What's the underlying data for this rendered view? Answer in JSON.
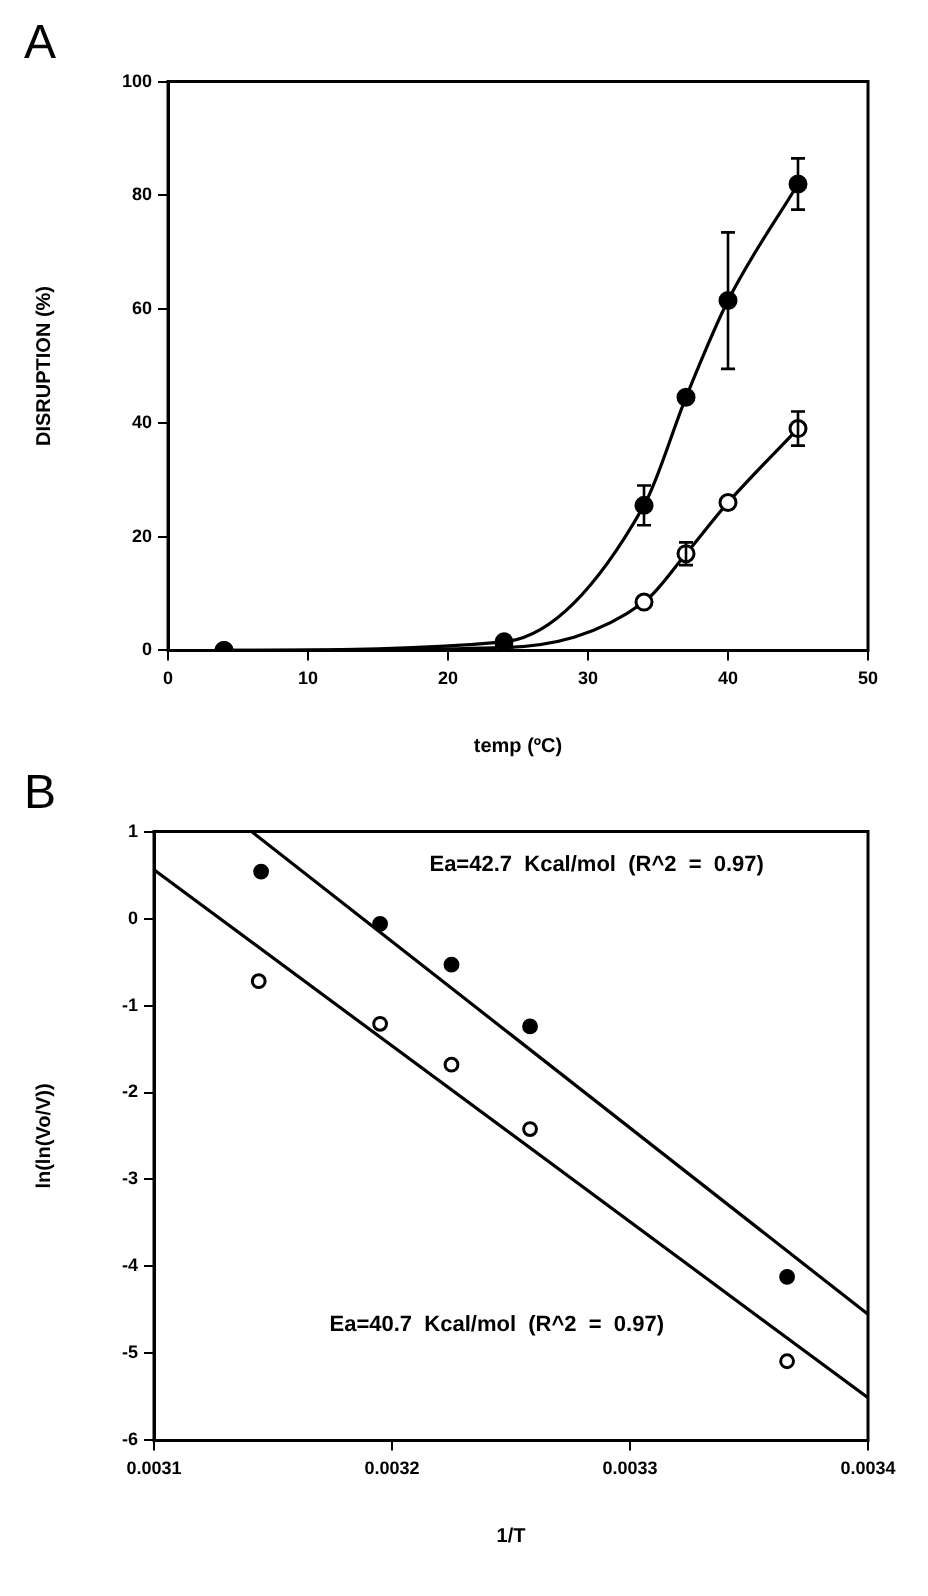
{
  "chart_data": [
    {
      "type": "line",
      "title": "A",
      "xlabel": "temp (ºC)",
      "ylabel": "DISRUPTION (%)",
      "x": [
        4,
        24,
        34,
        37,
        40,
        45
      ],
      "series": [
        {
          "color": "#000000",
          "values": [
            0,
            1.5,
            25.5,
            44.5,
            61.5,
            82
          ],
          "errors": [
            null,
            null,
            3.5,
            null,
            12,
            4.5
          ]
        },
        {
          "color": "#000000",
          "values": [
            0,
            0.5,
            8.5,
            17,
            26,
            39
          ],
          "errors": [
            null,
            null,
            null,
            2,
            null,
            3
          ]
        }
      ],
      "xlim": [
        0,
        50
      ],
      "xticks": [
        0,
        10,
        20,
        30,
        40,
        50
      ],
      "ylim": [
        0,
        100
      ],
      "yticks": [
        0,
        20,
        40,
        60,
        80,
        100
      ],
      "grid": false,
      "legend": false,
      "marker": "circle",
      "line_style": "solid"
    },
    {
      "type": "scatter",
      "title": "B",
      "xlabel": "1/T",
      "ylabel": "ln(ln(Vo/V))",
      "series": [
        {
          "color": "#000000",
          "x": [
            0.003145,
            0.003195,
            0.003225,
            0.003258,
            0.003366
          ],
          "values": [
            0.54,
            -0.06,
            -0.53,
            -1.24,
            -4.12
          ]
        },
        {
          "color": "#000000",
          "x": [
            0.003144,
            0.003195,
            0.003225,
            0.003258,
            0.003366
          ],
          "values": [
            -0.72,
            -1.21,
            -1.68,
            -2.42,
            -5.09
          ]
        },
        {
          "type": "line",
          "color": "#000000",
          "marker": "none",
          "x": [
            0.003141,
            0.0034
          ],
          "values": [
            1,
            -4.55
          ]
        },
        {
          "type": "line",
          "color": "#000000",
          "marker": "none",
          "x": [
            0.0031,
            0.0034
          ],
          "values": [
            0.56,
            -5.51
          ]
        }
      ],
      "annotations": [
        "Ea=42.7  Kcal/mol  (R^2  =  0.97)",
        "Ea=40.7  Kcal/mol  (R^2  =  0.97)"
      ],
      "xlim": [
        0.0031,
        0.0034
      ],
      "xticks": [
        0.0031,
        0.0032,
        0.0033,
        0.0034
      ],
      "ylim": [
        -6,
        1
      ],
      "yticks": [
        -6,
        -5,
        -4,
        -3,
        -2,
        -1,
        0,
        1
      ],
      "grid": false,
      "legend": false,
      "marker": "circle"
    }
  ]
}
